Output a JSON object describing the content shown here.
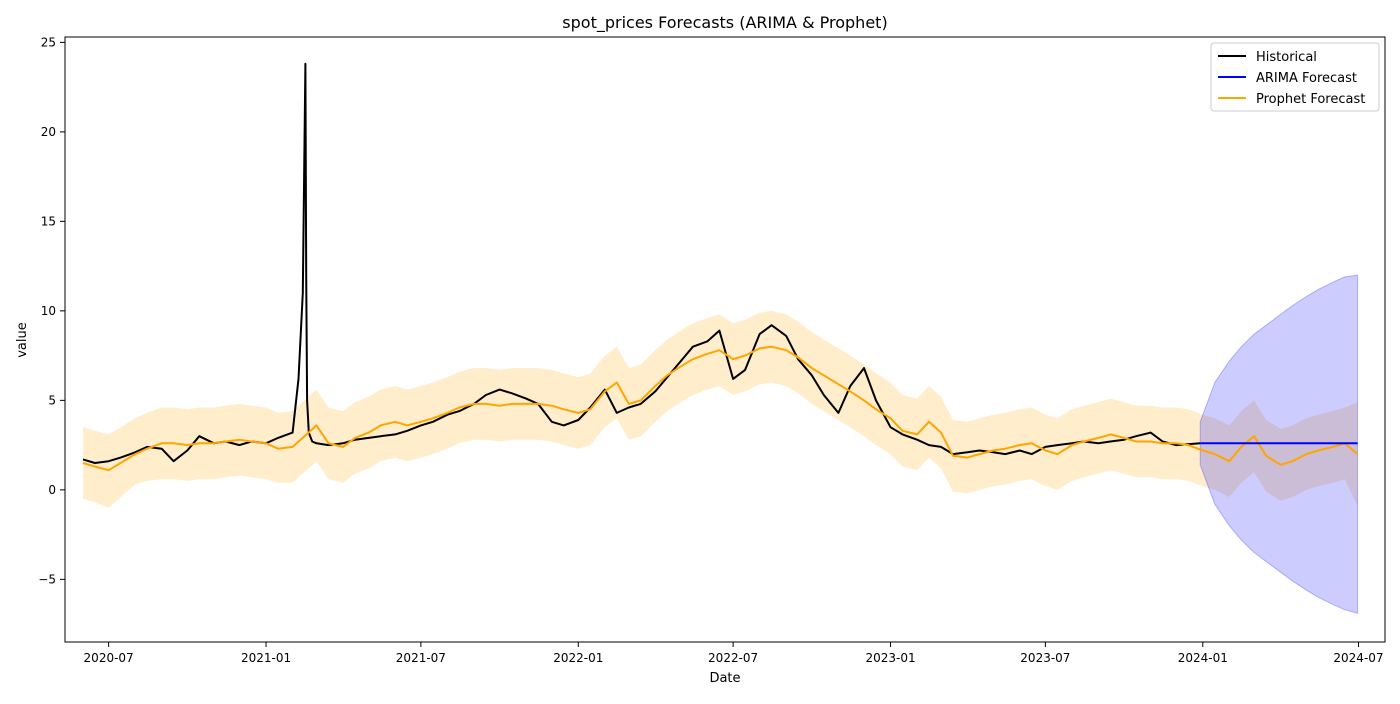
{
  "chart_data": {
    "type": "line",
    "title": "spot_prices Forecasts (ARIMA & Prophet)",
    "xlabel": "Date",
    "ylabel": "value",
    "xlim": [
      "2020-05-11",
      "2024-08-01"
    ],
    "ylim": [
      -8.5,
      25.3
    ],
    "x_ticks": [
      "2020-07",
      "2021-01",
      "2021-07",
      "2022-01",
      "2022-07",
      "2023-01",
      "2023-07",
      "2024-01",
      "2024-07"
    ],
    "y_ticks": [
      -5,
      0,
      5,
      10,
      15,
      20,
      25
    ],
    "y_tick_labels": [
      "−5",
      "0",
      "5",
      "10",
      "15",
      "20",
      "25"
    ],
    "legend": {
      "placement": "top-right",
      "entries": [
        "Historical",
        "ARIMA Forecast",
        "Prophet Forecast"
      ]
    },
    "colors": {
      "historical": "#000000",
      "arima": "#0000ff",
      "prophet": "#ffa500",
      "prophet_band": "#ffa500",
      "arima_band": "#0000ff"
    },
    "series": [
      {
        "name": "Historical",
        "x": [
          "2020-06-01",
          "2020-06-15",
          "2020-07-01",
          "2020-07-15",
          "2020-08-01",
          "2020-08-15",
          "2020-09-01",
          "2020-09-15",
          "2020-10-01",
          "2020-10-15",
          "2020-11-01",
          "2020-11-15",
          "2020-12-01",
          "2020-12-15",
          "2021-01-01",
          "2021-01-15",
          "2021-02-01",
          "2021-02-08",
          "2021-02-13",
          "2021-02-16",
          "2021-02-17",
          "2021-02-18",
          "2021-02-20",
          "2021-02-24",
          "2021-03-01",
          "2021-03-15",
          "2021-04-01",
          "2021-04-15",
          "2021-05-01",
          "2021-05-15",
          "2021-06-01",
          "2021-06-15",
          "2021-07-01",
          "2021-07-15",
          "2021-08-01",
          "2021-08-15",
          "2021-09-01",
          "2021-09-15",
          "2021-10-01",
          "2021-10-15",
          "2021-11-01",
          "2021-11-15",
          "2021-12-01",
          "2021-12-15",
          "2022-01-01",
          "2022-01-15",
          "2022-02-01",
          "2022-02-15",
          "2022-03-01",
          "2022-03-15",
          "2022-04-01",
          "2022-04-15",
          "2022-05-01",
          "2022-05-15",
          "2022-06-01",
          "2022-06-15",
          "2022-07-01",
          "2022-07-15",
          "2022-08-01",
          "2022-08-15",
          "2022-09-01",
          "2022-09-15",
          "2022-10-01",
          "2022-10-15",
          "2022-11-01",
          "2022-11-15",
          "2022-12-01",
          "2022-12-15",
          "2023-01-01",
          "2023-01-15",
          "2023-02-01",
          "2023-02-15",
          "2023-03-01",
          "2023-03-15",
          "2023-04-01",
          "2023-04-15",
          "2023-05-01",
          "2023-05-15",
          "2023-06-01",
          "2023-06-15",
          "2023-07-01",
          "2023-07-15",
          "2023-08-01",
          "2023-08-15",
          "2023-09-01",
          "2023-09-15",
          "2023-10-01",
          "2023-10-15",
          "2023-11-01",
          "2023-11-15",
          "2023-12-01",
          "2023-12-29"
        ],
        "values": [
          1.7,
          1.5,
          1.6,
          1.8,
          2.1,
          2.4,
          2.3,
          1.6,
          2.2,
          3.0,
          2.6,
          2.7,
          2.5,
          2.7,
          2.6,
          2.9,
          3.2,
          6.2,
          11.0,
          23.8,
          12.0,
          5.0,
          3.2,
          2.7,
          2.6,
          2.5,
          2.6,
          2.8,
          2.9,
          3.0,
          3.1,
          3.3,
          3.6,
          3.8,
          4.2,
          4.4,
          4.8,
          5.3,
          5.6,
          5.4,
          5.1,
          4.8,
          3.8,
          3.6,
          3.9,
          4.6,
          5.6,
          4.3,
          4.6,
          4.8,
          5.5,
          6.3,
          7.2,
          8.0,
          8.3,
          8.9,
          6.2,
          6.7,
          8.7,
          9.2,
          8.6,
          7.3,
          6.4,
          5.3,
          4.3,
          5.8,
          6.8,
          5.0,
          3.5,
          3.1,
          2.8,
          2.5,
          2.4,
          2.0,
          2.1,
          2.2,
          2.1,
          2.0,
          2.2,
          2.0,
          2.4,
          2.5,
          2.6,
          2.7,
          2.6,
          2.7,
          2.8,
          3.0,
          3.2,
          2.7,
          2.5,
          2.6
        ]
      },
      {
        "name": "ARIMA Forecast",
        "x": [
          "2023-12-29",
          "2024-06-30"
        ],
        "values": [
          2.6,
          2.6
        ],
        "band": {
          "x": [
            "2023-12-29",
            "2024-01-15",
            "2024-02-01",
            "2024-02-15",
            "2024-03-01",
            "2024-03-15",
            "2024-04-01",
            "2024-04-15",
            "2024-05-01",
            "2024-05-15",
            "2024-06-01",
            "2024-06-15",
            "2024-06-30"
          ],
          "lower": [
            1.4,
            -0.8,
            -2.0,
            -2.8,
            -3.5,
            -4.0,
            -4.6,
            -5.1,
            -5.6,
            -6.0,
            -6.4,
            -6.7,
            -6.9
          ],
          "upper": [
            3.8,
            6.0,
            7.2,
            8.0,
            8.7,
            9.2,
            9.8,
            10.3,
            10.8,
            11.2,
            11.6,
            11.9,
            12.0
          ]
        }
      },
      {
        "name": "Prophet Forecast",
        "x": [
          "2020-06-01",
          "2020-06-15",
          "2020-07-01",
          "2020-07-15",
          "2020-08-01",
          "2020-08-15",
          "2020-09-01",
          "2020-09-15",
          "2020-10-01",
          "2020-10-15",
          "2020-11-01",
          "2020-11-15",
          "2020-12-01",
          "2020-12-15",
          "2021-01-01",
          "2021-01-15",
          "2021-02-01",
          "2021-02-15",
          "2021-03-01",
          "2021-03-15",
          "2021-04-01",
          "2021-04-15",
          "2021-05-01",
          "2021-05-15",
          "2021-06-01",
          "2021-06-15",
          "2021-07-01",
          "2021-07-15",
          "2021-08-01",
          "2021-08-15",
          "2021-09-01",
          "2021-09-15",
          "2021-10-01",
          "2021-10-15",
          "2021-11-01",
          "2021-11-15",
          "2021-12-01",
          "2021-12-15",
          "2022-01-01",
          "2022-01-15",
          "2022-02-01",
          "2022-02-15",
          "2022-03-01",
          "2022-03-15",
          "2022-04-01",
          "2022-04-15",
          "2022-05-01",
          "2022-05-15",
          "2022-06-01",
          "2022-06-15",
          "2022-07-01",
          "2022-07-15",
          "2022-08-01",
          "2022-08-15",
          "2022-09-01",
          "2022-09-15",
          "2022-10-01",
          "2022-10-15",
          "2022-11-01",
          "2022-11-15",
          "2022-12-01",
          "2022-12-15",
          "2023-01-01",
          "2023-01-15",
          "2023-02-01",
          "2023-02-15",
          "2023-03-01",
          "2023-03-15",
          "2023-04-01",
          "2023-04-15",
          "2023-05-01",
          "2023-05-15",
          "2023-06-01",
          "2023-06-15",
          "2023-07-01",
          "2023-07-15",
          "2023-08-01",
          "2023-08-15",
          "2023-09-01",
          "2023-09-15",
          "2023-10-01",
          "2023-10-15",
          "2023-11-01",
          "2023-11-15",
          "2023-12-01",
          "2023-12-15",
          "2024-01-01",
          "2024-01-15",
          "2024-02-01",
          "2024-02-15",
          "2024-03-01",
          "2024-03-15",
          "2024-04-01",
          "2024-04-15",
          "2024-05-01",
          "2024-05-15",
          "2024-06-01",
          "2024-06-15",
          "2024-06-30"
        ],
        "values": [
          1.5,
          1.3,
          1.1,
          1.5,
          2.0,
          2.3,
          2.6,
          2.6,
          2.5,
          2.6,
          2.6,
          2.7,
          2.8,
          2.7,
          2.6,
          2.3,
          2.4,
          3.0,
          3.6,
          2.6,
          2.4,
          2.9,
          3.2,
          3.6,
          3.8,
          3.6,
          3.8,
          4.0,
          4.3,
          4.6,
          4.8,
          4.8,
          4.7,
          4.8,
          4.8,
          4.8,
          4.7,
          4.5,
          4.3,
          4.5,
          5.5,
          6.0,
          4.8,
          5.0,
          5.8,
          6.4,
          6.9,
          7.3,
          7.6,
          7.8,
          7.3,
          7.5,
          7.9,
          8.0,
          7.8,
          7.4,
          6.8,
          6.4,
          5.9,
          5.5,
          5.0,
          4.5,
          4.0,
          3.3,
          3.1,
          3.8,
          3.2,
          1.9,
          1.8,
          2.0,
          2.2,
          2.3,
          2.5,
          2.6,
          2.2,
          2.0,
          2.5,
          2.7,
          2.9,
          3.1,
          2.9,
          2.7,
          2.7,
          2.6,
          2.6,
          2.5,
          2.2,
          2.0,
          1.6,
          2.4,
          3.0,
          1.9,
          1.4,
          1.6,
          2.0,
          2.2,
          2.4,
          2.6,
          2.0
        ],
        "band": {
          "lower": [
            -0.5,
            -0.7,
            -1.0,
            -0.4,
            0.3,
            0.5,
            0.6,
            0.6,
            0.5,
            0.6,
            0.6,
            0.7,
            0.8,
            0.7,
            0.6,
            0.4,
            0.4,
            1.0,
            1.6,
            0.6,
            0.4,
            0.9,
            1.2,
            1.6,
            1.8,
            1.6,
            1.8,
            2.0,
            2.3,
            2.6,
            2.8,
            2.8,
            2.7,
            2.8,
            2.8,
            2.8,
            2.7,
            2.5,
            2.3,
            2.5,
            3.5,
            4.0,
            2.8,
            3.0,
            3.8,
            4.4,
            4.9,
            5.3,
            5.6,
            5.8,
            5.3,
            5.5,
            5.9,
            6.0,
            5.8,
            5.4,
            4.8,
            4.4,
            3.9,
            3.5,
            3.0,
            2.5,
            2.0,
            1.3,
            1.1,
            1.8,
            1.2,
            -0.1,
            -0.2,
            0.0,
            0.2,
            0.3,
            0.5,
            0.6,
            0.2,
            0.0,
            0.5,
            0.7,
            0.9,
            1.1,
            0.9,
            0.7,
            0.7,
            0.6,
            0.6,
            0.5,
            0.2,
            0.0,
            -0.4,
            0.4,
            1.0,
            -0.1,
            -0.6,
            -0.4,
            0.0,
            0.2,
            0.4,
            0.6,
            -0.9
          ],
          "upper": [
            3.5,
            3.3,
            3.1,
            3.5,
            4.0,
            4.3,
            4.6,
            4.6,
            4.5,
            4.6,
            4.6,
            4.7,
            4.8,
            4.7,
            4.6,
            4.3,
            4.4,
            5.0,
            5.6,
            4.6,
            4.4,
            4.9,
            5.2,
            5.6,
            5.8,
            5.6,
            5.8,
            6.0,
            6.3,
            6.6,
            6.8,
            6.8,
            6.7,
            6.8,
            6.8,
            6.8,
            6.7,
            6.5,
            6.3,
            6.5,
            7.5,
            8.0,
            6.8,
            7.0,
            7.8,
            8.4,
            8.9,
            9.3,
            9.6,
            9.8,
            9.3,
            9.5,
            9.9,
            10.0,
            9.8,
            9.4,
            8.8,
            8.4,
            7.9,
            7.5,
            7.0,
            6.5,
            6.0,
            5.3,
            5.1,
            5.8,
            5.2,
            3.9,
            3.8,
            4.0,
            4.2,
            4.3,
            4.5,
            4.6,
            4.2,
            4.0,
            4.5,
            4.7,
            4.9,
            5.1,
            4.9,
            4.7,
            4.7,
            4.6,
            4.6,
            4.5,
            4.2,
            4.0,
            3.6,
            4.4,
            5.0,
            3.9,
            3.4,
            3.6,
            4.0,
            4.2,
            4.4,
            4.6,
            4.9
          ]
        }
      }
    ]
  }
}
